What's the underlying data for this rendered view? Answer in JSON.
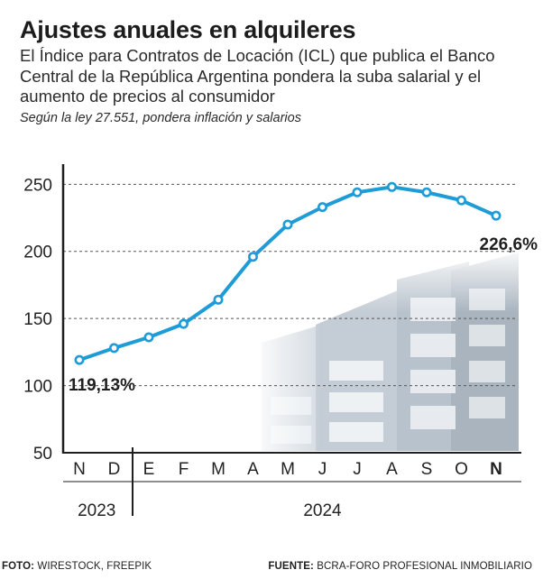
{
  "header": {
    "title": "Ajustes anuales en alquileres",
    "subtitle": "El Índice para Contratos de Locación (ICL) que publica el Banco Central de la República Argentina pondera la suba salarial y el aumento de precios al consumidor",
    "note": "Según la ley 27.551, pondera inflación y salarios"
  },
  "chart_data": {
    "type": "line",
    "categories": [
      "N",
      "D",
      "E",
      "F",
      "M",
      "A",
      "M",
      "J",
      "J",
      "A",
      "S",
      "O",
      "N"
    ],
    "years": [
      {
        "label": "2023",
        "from": 0,
        "to": 1
      },
      {
        "label": "2024",
        "from": 2,
        "to": 12
      }
    ],
    "series": [
      {
        "values": [
          119.13,
          128,
          136,
          146,
          164,
          196,
          220,
          233,
          244,
          248,
          244,
          238,
          226.6
        ],
        "color": "#1d9cd7"
      }
    ],
    "y_ticks": [
      50,
      100,
      150,
      200,
      250
    ],
    "ylim": [
      50,
      265
    ],
    "grid": "dashed horizontal",
    "annotations": [
      {
        "index": 0,
        "text": "119,13%"
      },
      {
        "index": 12,
        "text": "226,6%"
      }
    ],
    "highlight_category_index": 12
  },
  "footer": {
    "photo_label": "FOTO:",
    "photo_credit": "WIRESTOCK, FREEPIK",
    "source_label": "FUENTE:",
    "source_credit": "BCRA-FORO PROFESIONAL INMOBILIARIO"
  }
}
